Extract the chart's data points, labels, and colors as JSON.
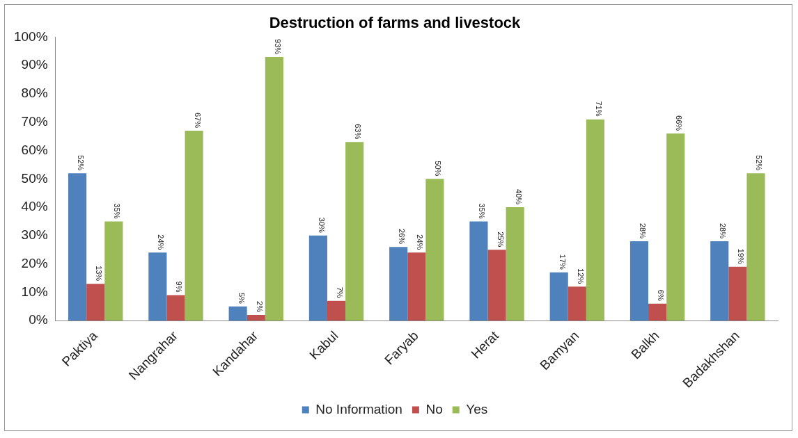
{
  "chart_data": {
    "type": "bar",
    "title": "Destruction of farms and livestock",
    "categories": [
      "Paktiya",
      "Nangrahar",
      "Kandahar",
      "Kabul",
      "Faryab",
      "Herat",
      "Bamyan",
      "Balkh",
      "Badakhshan"
    ],
    "series": [
      {
        "name": "No Information",
        "color": "#4f81bd",
        "values": [
          52,
          24,
          5,
          30,
          26,
          35,
          17,
          28,
          28
        ],
        "value_labels": [
          "52%",
          "24%",
          "5%",
          "30%",
          "26%",
          "35%",
          "17%",
          "28%",
          "28%"
        ]
      },
      {
        "name": "No",
        "color": "#c0504d",
        "values": [
          13,
          9,
          2,
          7,
          24,
          25,
          12,
          6,
          19
        ],
        "value_labels": [
          "13%",
          "9%",
          "2%",
          "7%",
          "24%",
          "25%",
          "12%",
          "6%",
          "19%"
        ]
      },
      {
        "name": "Yes",
        "color": "#9bbb59",
        "values": [
          35,
          67,
          93,
          63,
          50,
          40,
          71,
          66,
          52
        ],
        "value_labels": [
          "35%",
          "67%",
          "93%",
          "63%",
          "50%",
          "40%",
          "71%",
          "66%",
          "52%"
        ]
      }
    ],
    "ylim": [
      0,
      100
    ],
    "yticks": [
      {
        "value": 0,
        "label": "0%"
      },
      {
        "value": 10,
        "label": "10%"
      },
      {
        "value": 20,
        "label": "20%"
      },
      {
        "value": 30,
        "label": "30%"
      },
      {
        "value": 40,
        "label": "40%"
      },
      {
        "value": 50,
        "label": "50%"
      },
      {
        "value": 60,
        "label": "60%"
      },
      {
        "value": 70,
        "label": "70%"
      },
      {
        "value": 80,
        "label": "80%"
      },
      {
        "value": 90,
        "label": "90%"
      },
      {
        "value": 100,
        "label": "100%"
      }
    ],
    "grid": false,
    "legend": "bottom"
  }
}
